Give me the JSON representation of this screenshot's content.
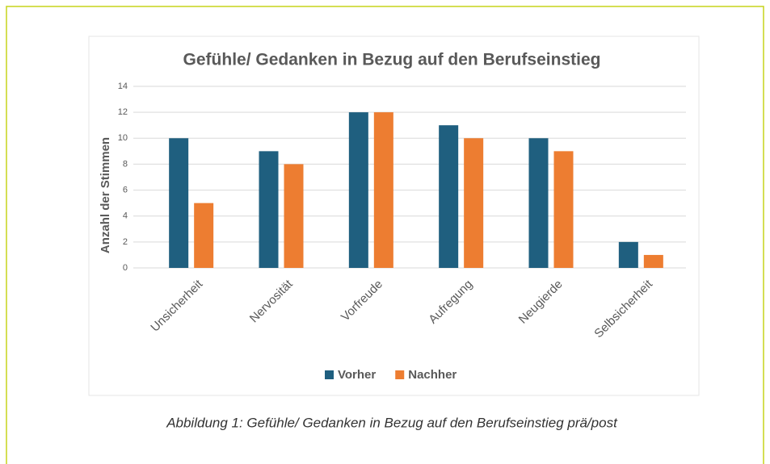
{
  "chart_data": {
    "type": "bar",
    "title": "Gefühle/ Gedanken in Bezug auf den Berufseinstieg",
    "y_label": "Anzahl der Stimmen",
    "categories": [
      "Unsicherheit",
      "Nervosität",
      "Vorfreude",
      "Aufregung",
      "Neugierde",
      "Selbsicherheit"
    ],
    "series": [
      {
        "name": "Vorher",
        "color": "#1f5f7f",
        "values": [
          10,
          9,
          12,
          11,
          10,
          2
        ]
      },
      {
        "name": "Nachher",
        "color": "#ed7d31",
        "values": [
          5,
          8,
          12,
          10,
          9,
          1
        ]
      }
    ],
    "ylim": [
      0,
      14
    ],
    "yticks": [
      0,
      2,
      4,
      6,
      8,
      10,
      12,
      14
    ],
    "grid": true,
    "legend": "bottom"
  },
  "caption": "Abbildung 1: Gefühle/ Gedanken in Bezug auf den Berufseinstieg prä/post"
}
